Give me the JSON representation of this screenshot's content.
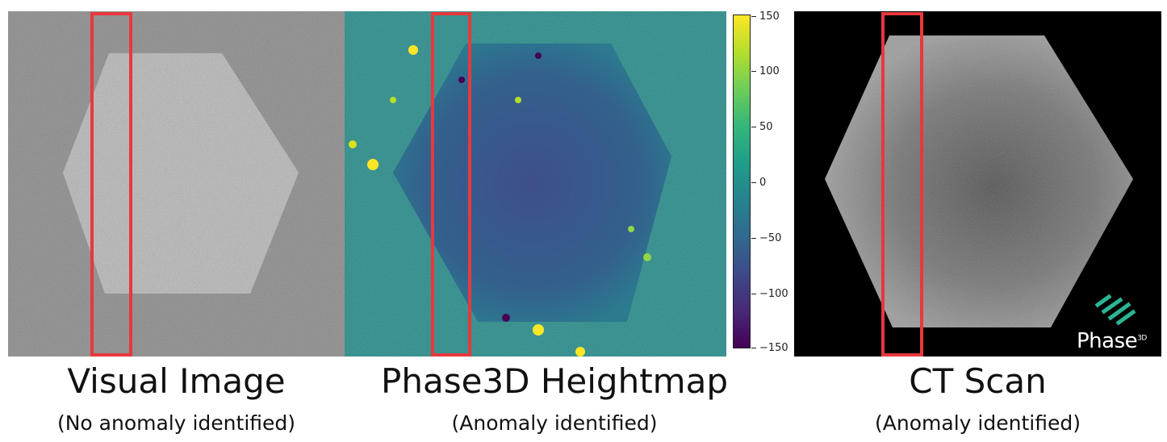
{
  "panels": [
    {
      "title": "Visual Image",
      "subtitle": "(No anomaly identified)"
    },
    {
      "title": "Phase3D Heightmap",
      "subtitle": "(Anomaly identified)"
    },
    {
      "title": "CT Scan",
      "subtitle": "(Anomaly identified)"
    }
  ],
  "colorbar": {
    "ticks": [
      "150",
      "100",
      "50",
      "0",
      "−50",
      "−100",
      "−150"
    ],
    "colormap": "viridis",
    "min": -150,
    "max": 150
  },
  "logo": {
    "word": "Phase",
    "superscript": "3D",
    "accent": "#2bb596"
  },
  "highlight_color": "#e8383d"
}
